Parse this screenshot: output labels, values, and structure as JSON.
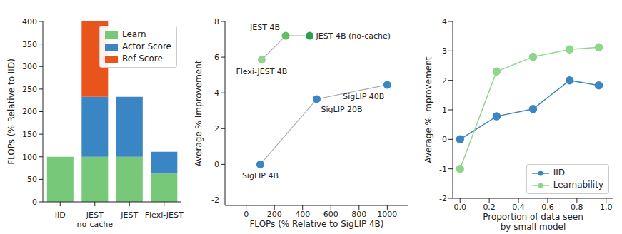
{
  "chart_data": [
    {
      "type": "bar",
      "stacked": true,
      "categories": [
        "IID",
        "JEST\nno-cache",
        "JEST",
        "Flexi-JEST"
      ],
      "series": [
        {
          "name": "Learn",
          "color": "#77c878",
          "values": [
            100,
            100,
            100,
            63
          ]
        },
        {
          "name": "Actor Score",
          "color": "#3a85c4",
          "values": [
            0,
            133,
            133,
            48
          ]
        },
        {
          "name": "Ref Score",
          "color": "#e8541c",
          "values": [
            0,
            167,
            0,
            0
          ]
        }
      ],
      "y_label": "FLOPs (% Relative to IID)",
      "ylim": [
        0,
        400
      ],
      "yticks": [
        0,
        50,
        100,
        150,
        200,
        250,
        300,
        350,
        400
      ],
      "legend": "upper right"
    },
    {
      "type": "scatter",
      "x_label": "FLOPs (% Relative to SigLIP 4B)",
      "y_label": "Average % Improvement",
      "series": [
        {
          "color": "#aaaaaa",
          "colors": [
            "#8fd68a",
            "#5fbf63",
            "#2e9e4f"
          ],
          "marker": "circle",
          "line_style": "solid",
          "labels": [
            "Flexi-JEST 4B",
            "JEST 4B",
            "JEST 4B (no-cache)"
          ],
          "x": [
            110,
            280,
            450
          ],
          "values": [
            5.85,
            7.2,
            7.2
          ]
        },
        {
          "color": "#aaaaaa",
          "colors": [
            "#3a85c4",
            "#3a85c4",
            "#3a85c4"
          ],
          "marker": "circle",
          "line_style": "solid",
          "labels": [
            "SigLIP 4B",
            "SigLIP 20B",
            "SigLIP 40B"
          ],
          "x": [
            100,
            500,
            1000
          ],
          "values": [
            0,
            3.65,
            4.45
          ]
        }
      ],
      "xlim": [
        -150,
        1150
      ],
      "xticks": [
        0,
        200,
        400,
        600,
        800,
        1000
      ],
      "ylim": [
        -2.3,
        8
      ],
      "yticks": [
        -2,
        0,
        2,
        4,
        6,
        8
      ]
    },
    {
      "type": "line",
      "x_label": "Proportion of data seen\nby small model",
      "y_label": "Average % Improvement",
      "x": [
        0,
        0.25,
        0.5,
        0.75,
        0.95
      ],
      "series": [
        {
          "name": "IID",
          "color": "#3a85c4",
          "marker": "circle",
          "line_style": "solid",
          "values": [
            0,
            0.78,
            1.03,
            2.0,
            1.83
          ]
        },
        {
          "name": "Learnability",
          "color": "#8fd68a",
          "marker": "circle",
          "line_style": "solid",
          "values": [
            -1.0,
            2.3,
            2.8,
            3.05,
            3.12
          ]
        }
      ],
      "xlim": [
        -0.05,
        1.05
      ],
      "xticks": [
        {
          "value": 0,
          "label": "0.0"
        },
        {
          "value": 0.2,
          "label": "0.2"
        },
        {
          "value": 0.4,
          "label": "0.4"
        },
        {
          "value": 0.6,
          "label": "0.6"
        },
        {
          "value": 0.8,
          "label": "0.8"
        },
        {
          "value": 1,
          "label": "1.0"
        }
      ],
      "ylim": [
        -2,
        4
      ],
      "yticks": [
        -2,
        -1,
        0,
        1,
        2,
        3,
        4
      ],
      "legend": "lower right"
    }
  ]
}
